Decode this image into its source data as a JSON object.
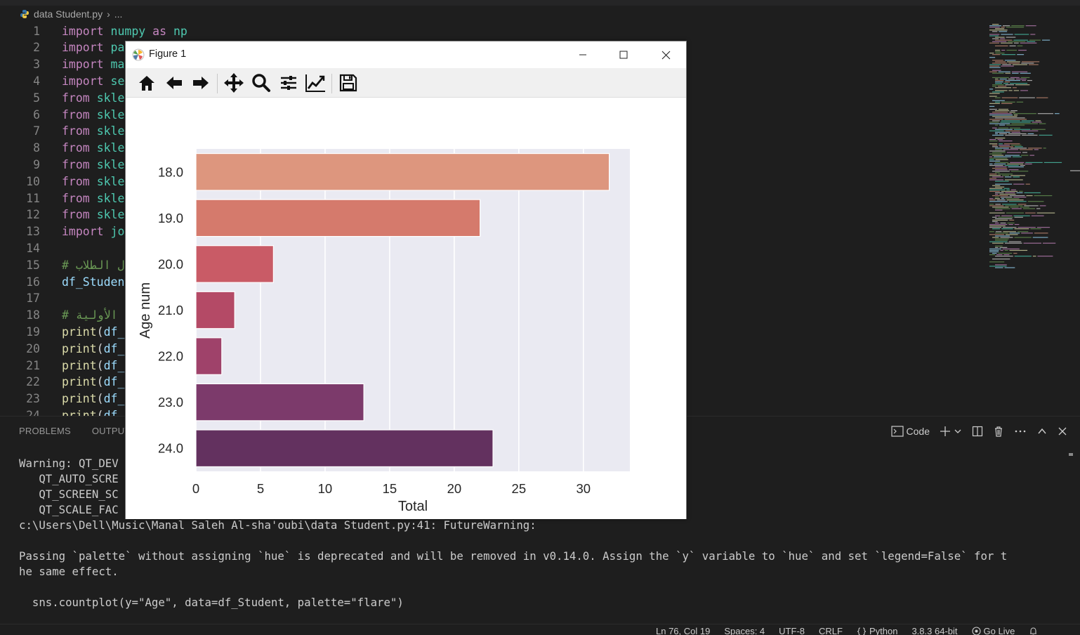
{
  "breadcrumb": {
    "file": "data Student.py",
    "ellipsis": "..."
  },
  "editor": {
    "lines": [
      {
        "n": "1",
        "tokens": [
          [
            "kw",
            "import"
          ],
          [
            "pl",
            " "
          ],
          [
            "mod",
            "numpy"
          ],
          [
            "pl",
            " "
          ],
          [
            "kw",
            "as"
          ],
          [
            "pl",
            " "
          ],
          [
            "mod",
            "np"
          ]
        ]
      },
      {
        "n": "2",
        "tokens": [
          [
            "kw",
            "import"
          ],
          [
            "pl",
            " "
          ],
          [
            "mod",
            "pa"
          ]
        ]
      },
      {
        "n": "3",
        "tokens": [
          [
            "kw",
            "import"
          ],
          [
            "pl",
            " "
          ],
          [
            "mod",
            "ma"
          ]
        ]
      },
      {
        "n": "4",
        "tokens": [
          [
            "kw",
            "import"
          ],
          [
            "pl",
            " "
          ],
          [
            "mod",
            "se"
          ]
        ]
      },
      {
        "n": "5",
        "tokens": [
          [
            "kw",
            "from"
          ],
          [
            "pl",
            " "
          ],
          [
            "mod",
            "skle"
          ]
        ]
      },
      {
        "n": "6",
        "tokens": [
          [
            "kw",
            "from"
          ],
          [
            "pl",
            " "
          ],
          [
            "mod",
            "skle"
          ]
        ]
      },
      {
        "n": "7",
        "tokens": [
          [
            "kw",
            "from"
          ],
          [
            "pl",
            " "
          ],
          [
            "mod",
            "skle"
          ]
        ]
      },
      {
        "n": "8",
        "tokens": [
          [
            "kw",
            "from"
          ],
          [
            "pl",
            " "
          ],
          [
            "mod",
            "skle"
          ]
        ]
      },
      {
        "n": "9",
        "tokens": [
          [
            "kw",
            "from"
          ],
          [
            "pl",
            " "
          ],
          [
            "mod",
            "skle"
          ]
        ]
      },
      {
        "n": "10",
        "tokens": [
          [
            "kw",
            "from"
          ],
          [
            "pl",
            " "
          ],
          [
            "mod",
            "skle"
          ]
        ]
      },
      {
        "n": "11",
        "tokens": [
          [
            "kw",
            "from"
          ],
          [
            "pl",
            " "
          ],
          [
            "mod",
            "skle"
          ]
        ]
      },
      {
        "n": "12",
        "tokens": [
          [
            "kw",
            "from"
          ],
          [
            "pl",
            " "
          ],
          [
            "mod",
            "skle"
          ]
        ]
      },
      {
        "n": "13",
        "tokens": [
          [
            "kw",
            "import"
          ],
          [
            "pl",
            " "
          ],
          [
            "mod",
            "jo"
          ]
        ]
      },
      {
        "n": "14",
        "tokens": []
      },
      {
        "n": "15",
        "tokens": [
          [
            "cm",
            "# ل الطلاب"
          ]
        ]
      },
      {
        "n": "16",
        "tokens": [
          [
            "var",
            "df_Studen"
          ]
        ]
      },
      {
        "n": "17",
        "tokens": []
      },
      {
        "n": "18",
        "tokens": [
          [
            "cm",
            "# الأولية"
          ]
        ]
      },
      {
        "n": "19",
        "tokens": [
          [
            "fn",
            "print"
          ],
          [
            "pl",
            "("
          ],
          [
            "var",
            "df_"
          ]
        ]
      },
      {
        "n": "20",
        "tokens": [
          [
            "fn",
            "print"
          ],
          [
            "pl",
            "("
          ],
          [
            "var",
            "df_"
          ]
        ]
      },
      {
        "n": "21",
        "tokens": [
          [
            "fn",
            "print"
          ],
          [
            "pl",
            "("
          ],
          [
            "var",
            "df_"
          ]
        ]
      },
      {
        "n": "22",
        "tokens": [
          [
            "fn",
            "print"
          ],
          [
            "pl",
            "("
          ],
          [
            "var",
            "df_"
          ]
        ]
      },
      {
        "n": "23",
        "tokens": [
          [
            "fn",
            "print"
          ],
          [
            "pl",
            "("
          ],
          [
            "var",
            "df_"
          ]
        ]
      },
      {
        "n": "24",
        "tokens": [
          [
            "fn",
            "print"
          ],
          [
            "pl",
            "("
          ],
          [
            "var",
            "df_"
          ]
        ]
      }
    ]
  },
  "panel": {
    "tabs": [
      "PROBLEMS",
      "OUTPUT"
    ],
    "terminal_profile": "Code",
    "terminal_lines": [
      "Warning: QT_DEV",
      "   QT_AUTO_SCRE",
      "   QT_SCREEN_SC",
      "   QT_SCALE_FAC",
      "c:\\Users\\Dell\\Music\\Manal Saleh Al-sha'oubi\\data Student.py:41: FutureWarning:",
      "",
      "Passing `palette` without assigning `hue` is deprecated and will be removed in v0.14.0. Assign the `y` variable to `hue` and set `legend=False` for t",
      "he same effect.",
      "",
      "  sns.countplot(y=\"Age\", data=df_Student, palette=\"flare\")"
    ]
  },
  "statusbar": {
    "position": "Ln 76, Col 19",
    "spaces": "Spaces: 4",
    "encoding": "UTF-8",
    "eol": "CRLF",
    "language": "Python",
    "interpreter": "3.8.3 64-bit",
    "golive": "Go Live"
  },
  "figure": {
    "title": "Figure 1",
    "toolbar": [
      "home-icon",
      "back-arrow-icon",
      "forward-arrow-icon",
      "pan-move-icon",
      "zoom-magnifier-icon",
      "configure-subplots-icon",
      "edit-axis-icon",
      "save-icon"
    ]
  },
  "chart_data": {
    "type": "bar",
    "orientation": "horizontal",
    "categories": [
      "18.0",
      "19.0",
      "20.0",
      "21.0",
      "22.0",
      "23.0",
      "24.0"
    ],
    "values": [
      32,
      22,
      6,
      3,
      2,
      13,
      23
    ],
    "colors": [
      "#dd967e",
      "#d57a6c",
      "#c95b66",
      "#b44a66",
      "#9f426a",
      "#7c3a6b",
      "#63315f"
    ],
    "xlabel": "Total",
    "ylabel": "Age num",
    "xlim": [
      0,
      33.6
    ],
    "xticks": [
      0,
      5,
      10,
      15,
      20,
      25,
      30
    ],
    "grid": true,
    "background": "#eaeaf2"
  }
}
